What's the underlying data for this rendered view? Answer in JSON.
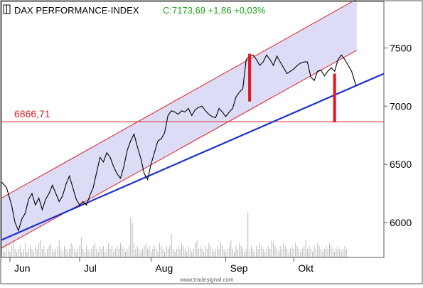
{
  "chart_data": {
    "type": "line",
    "title": "DAX PERFORMANCE-INDEX",
    "quote": "C:7173,69 +1,86 +0,03%",
    "title_icon": "window-icon",
    "watermark": "www.tradesignal.com",
    "x_labels": [
      "Jun",
      "Jul",
      "Aug",
      "Sep",
      "Okt"
    ],
    "y_ticks": [
      6000,
      6500,
      7000,
      7500
    ],
    "ylim": [
      5700,
      7900
    ],
    "horizontal_level": {
      "label": "6866,71",
      "value": 6866.71,
      "color": "#e0202a"
    },
    "series": [
      {
        "points": [
          [
            0,
            6350
          ],
          [
            3,
            6300
          ],
          [
            6,
            6150
          ],
          [
            8,
            6000
          ],
          [
            10,
            5930
          ],
          [
            12,
            6030
          ],
          [
            14,
            6080
          ],
          [
            16,
            6200
          ],
          [
            18,
            6250
          ],
          [
            20,
            6150
          ],
          [
            22,
            6210
          ],
          [
            24,
            6110
          ],
          [
            26,
            6200
          ],
          [
            28,
            6250
          ],
          [
            30,
            6320
          ],
          [
            32,
            6250
          ],
          [
            34,
            6180
          ],
          [
            36,
            6230
          ],
          [
            38,
            6330
          ],
          [
            40,
            6400
          ],
          [
            42,
            6300
          ],
          [
            44,
            6200
          ],
          [
            46,
            6150
          ],
          [
            48,
            6180
          ],
          [
            50,
            6150
          ],
          [
            52,
            6230
          ],
          [
            54,
            6300
          ],
          [
            56,
            6430
          ],
          [
            58,
            6560
          ],
          [
            60,
            6520
          ],
          [
            62,
            6600
          ],
          [
            64,
            6560
          ],
          [
            66,
            6480
          ],
          [
            68,
            6420
          ],
          [
            70,
            6380
          ],
          [
            72,
            6480
          ],
          [
            74,
            6620
          ],
          [
            76,
            6700
          ],
          [
            78,
            6760
          ],
          [
            80,
            6650
          ],
          [
            82,
            6550
          ],
          [
            84,
            6420
          ],
          [
            86,
            6370
          ],
          [
            88,
            6500
          ],
          [
            90,
            6600
          ],
          [
            92,
            6700
          ],
          [
            94,
            6720
          ],
          [
            96,
            6770
          ],
          [
            98,
            6920
          ],
          [
            100,
            6960
          ],
          [
            102,
            6950
          ],
          [
            104,
            6930
          ],
          [
            106,
            6960
          ],
          [
            108,
            6950
          ],
          [
            110,
            6980
          ],
          [
            112,
            6920
          ],
          [
            114,
            6970
          ],
          [
            116,
            6990
          ],
          [
            118,
            7000
          ],
          [
            120,
            6960
          ],
          [
            122,
            6930
          ],
          [
            124,
            6910
          ],
          [
            126,
            6900
          ],
          [
            128,
            6980
          ],
          [
            130,
            6950
          ],
          [
            132,
            6910
          ],
          [
            134,
            6950
          ],
          [
            136,
            6980
          ],
          [
            138,
            7080
          ],
          [
            140,
            7120
          ],
          [
            142,
            7150
          ],
          [
            144,
            7400
          ],
          [
            146,
            7430
          ],
          [
            148,
            7440
          ],
          [
            150,
            7400
          ],
          [
            152,
            7350
          ],
          [
            154,
            7380
          ],
          [
            156,
            7440
          ],
          [
            158,
            7400
          ],
          [
            160,
            7350
          ],
          [
            162,
            7430
          ],
          [
            164,
            7380
          ],
          [
            166,
            7330
          ],
          [
            168,
            7280
          ],
          [
            170,
            7300
          ],
          [
            172,
            7320
          ],
          [
            174,
            7350
          ],
          [
            176,
            7370
          ],
          [
            178,
            7380
          ],
          [
            180,
            7380
          ],
          [
            182,
            7250
          ],
          [
            184,
            7220
          ],
          [
            186,
            7300
          ],
          [
            188,
            7310
          ],
          [
            190,
            7260
          ],
          [
            192,
            7300
          ],
          [
            194,
            7330
          ],
          [
            196,
            7300
          ],
          [
            198,
            7400
          ],
          [
            200,
            7440
          ],
          [
            202,
            7400
          ],
          [
            204,
            7350
          ],
          [
            206,
            7300
          ],
          [
            208,
            7200
          ],
          [
            209,
            7174
          ]
        ],
        "color": "#000000"
      }
    ],
    "trend_channel": {
      "upper": [
        [
          0,
          6210
        ],
        [
          209,
          7920
        ]
      ],
      "lower": [
        [
          0,
          5780
        ],
        [
          209,
          7480
        ]
      ],
      "fill": "#dcdcf7",
      "color": "#e0202a"
    },
    "trend_line": {
      "points": [
        [
          0,
          5850
        ],
        [
          225,
          7280
        ]
      ],
      "color": "#1a2fd0"
    },
    "gap_markers": [
      {
        "x": 146,
        "from": 7040,
        "to": 7450
      },
      {
        "x": 196,
        "from": 6860,
        "to": 7280
      }
    ],
    "volume_bars": [
      3,
      4,
      2,
      5,
      3,
      2,
      4,
      6,
      3,
      2,
      3,
      4,
      2,
      3,
      5,
      2,
      3,
      4,
      3,
      2,
      4,
      3,
      5,
      6,
      3,
      4,
      2,
      3,
      4,
      5,
      3,
      2,
      3,
      4,
      6,
      3,
      2,
      4,
      3,
      2,
      3,
      5,
      4,
      3,
      2,
      3,
      4,
      7,
      3,
      2,
      4,
      3,
      2,
      3,
      4,
      5,
      3,
      2,
      4,
      3,
      4,
      2,
      3,
      5,
      3,
      4,
      2,
      3,
      4,
      3,
      5,
      4,
      3,
      2,
      3,
      4,
      14,
      12,
      5,
      3,
      4,
      3,
      2,
      3,
      4,
      5,
      3,
      4,
      2,
      3,
      4,
      3,
      2,
      5,
      4,
      3,
      2,
      4,
      3,
      4,
      8,
      3,
      2,
      3,
      4,
      3,
      5,
      4,
      3,
      2,
      4,
      3,
      2,
      3,
      5,
      6,
      3,
      4,
      3,
      2,
      4,
      3,
      5,
      4,
      3,
      2,
      3,
      4,
      3,
      5,
      4,
      3,
      2,
      3,
      4,
      6,
      3,
      2,
      4,
      3,
      5,
      4,
      3,
      2,
      3,
      16,
      3,
      4,
      3,
      2,
      4,
      3,
      5,
      4,
      3,
      2,
      3,
      4,
      3,
      6,
      5,
      4,
      3,
      2,
      4,
      3,
      5,
      4,
      3,
      2,
      3,
      4,
      3,
      5,
      4,
      3,
      2,
      3,
      4,
      6,
      3,
      4,
      3,
      2,
      4,
      3,
      5,
      4,
      3,
      2,
      3,
      4,
      3,
      5,
      4,
      3,
      2,
      3,
      4,
      3,
      2,
      3,
      4,
      3
    ]
  }
}
